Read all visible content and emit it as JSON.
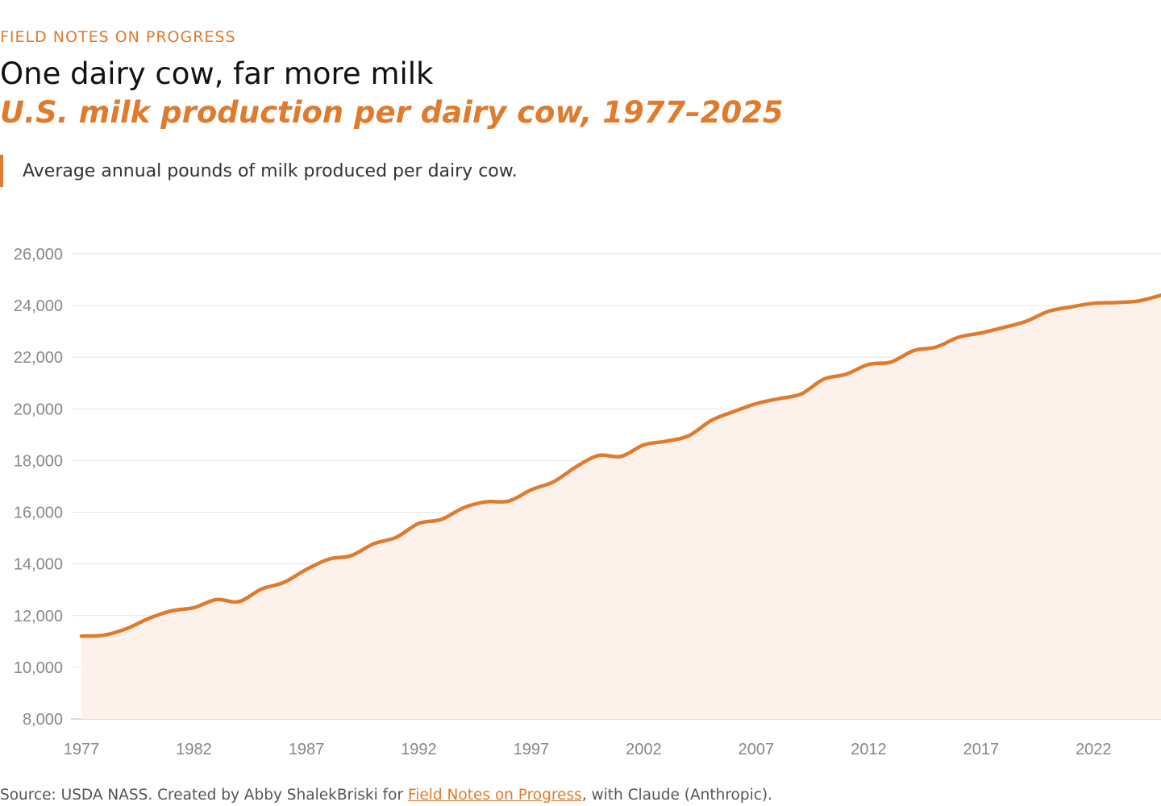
{
  "header": {
    "kicker": "FIELD NOTES ON PROGRESS",
    "title": "One dairy cow, far more milk",
    "subtitle": "U.S. milk production per dairy cow, 1977–2025",
    "description": "Average annual pounds of milk produced per dairy cow."
  },
  "footer": {
    "source_prefix": "Source: USDA NASS. Created by Abby ShalekBriski for ",
    "link_text": "Field Notes on Progress",
    "source_suffix": ", with Claude (Anthropic)."
  },
  "colors": {
    "accent": "#e07a2c",
    "area_fill": "#fdf1eb",
    "grid": "#e6e6e6",
    "tick_text": "#888888"
  },
  "chart_data": {
    "type": "area",
    "title": "U.S. milk production per dairy cow, 1977–2025",
    "xlabel": "",
    "ylabel": "",
    "xlim": [
      1977,
      2025
    ],
    "ylim": [
      8000,
      26000
    ],
    "y_ticks": [
      8000,
      10000,
      12000,
      14000,
      16000,
      18000,
      20000,
      22000,
      24000,
      26000
    ],
    "y_tick_labels": [
      "8,000",
      "10,000",
      "12,000",
      "14,000",
      "16,000",
      "18,000",
      "20,000",
      "22,000",
      "24,000",
      "26,000"
    ],
    "x_ticks": [
      1977,
      1982,
      1987,
      1992,
      1997,
      2002,
      2007,
      2012,
      2017,
      2022
    ],
    "x_tick_labels": [
      "1977",
      "1982",
      "1987",
      "1992",
      "1997",
      "2002",
      "2007",
      "2012",
      "2017",
      "2022"
    ],
    "grid": true,
    "series": [
      {
        "name": "Milk per cow (lbs)",
        "x": [
          1977,
          1978,
          1979,
          1980,
          1981,
          1982,
          1983,
          1984,
          1985,
          1986,
          1987,
          1988,
          1989,
          1990,
          1991,
          1992,
          1993,
          1994,
          1995,
          1996,
          1997,
          1998,
          1999,
          2000,
          2001,
          2002,
          2003,
          2004,
          2005,
          2006,
          2007,
          2008,
          2009,
          2010,
          2011,
          2012,
          2013,
          2014,
          2015,
          2016,
          2017,
          2018,
          2019,
          2020,
          2021,
          2022,
          2023,
          2024,
          2025
        ],
        "values": [
          11206,
          11243,
          11492,
          11891,
          12183,
          12306,
          12622,
          12541,
          13024,
          13285,
          13786,
          14185,
          14323,
          14782,
          15031,
          15570,
          15722,
          16179,
          16405,
          16433,
          16871,
          17185,
          17763,
          18201,
          18162,
          18608,
          18749,
          18960,
          19550,
          19895,
          20204,
          20396,
          20576,
          21149,
          21345,
          21722,
          21814,
          22258,
          22393,
          22775,
          22941,
          23151,
          23391,
          23777,
          23948,
          24087,
          24117,
          24178,
          24400
        ]
      }
    ]
  }
}
